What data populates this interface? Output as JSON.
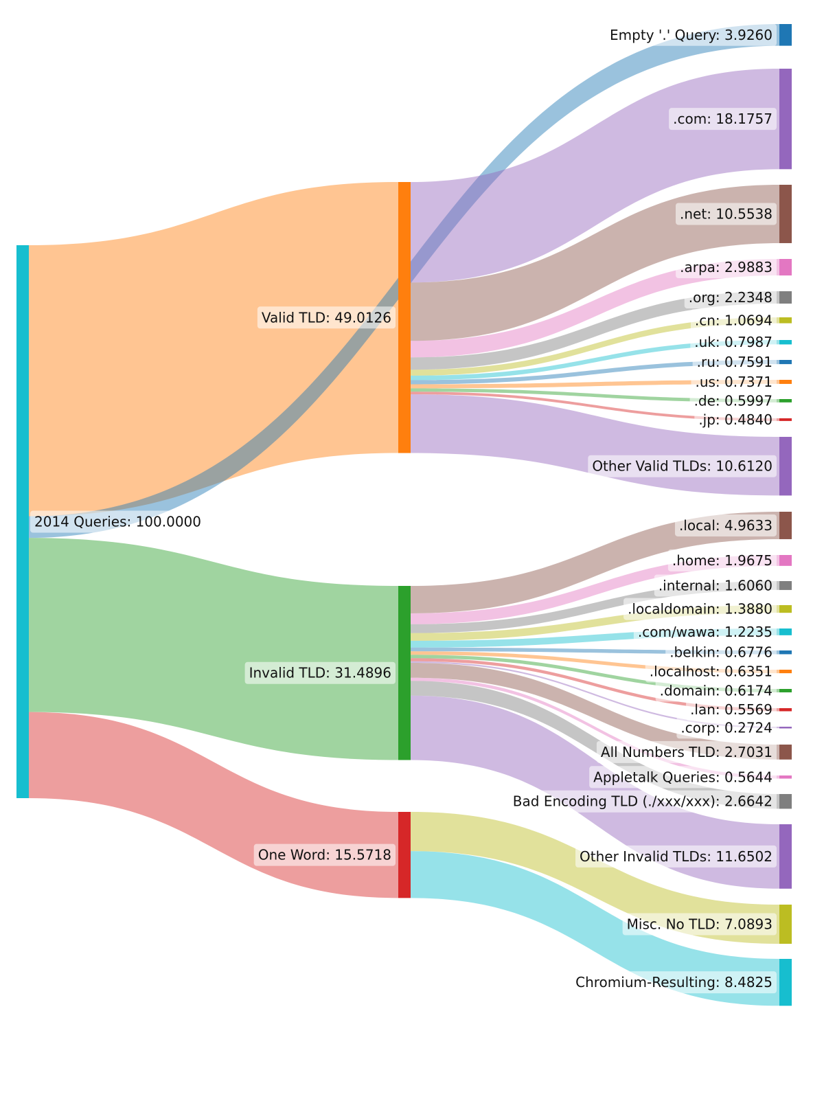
{
  "chart_data": {
    "type": "sankey",
    "title": "",
    "nodes": [
      {
        "id": "root",
        "label": "2014 Queries",
        "value": 100.0,
        "column": 0,
        "color": "#17becf"
      },
      {
        "id": "valid",
        "label": "Valid TLD",
        "value": 49.0126,
        "column": 1,
        "color": "#ff7f0e"
      },
      {
        "id": "invalid",
        "label": "Invalid TLD",
        "value": 31.4896,
        "column": 1,
        "color": "#2ca02c"
      },
      {
        "id": "oneword",
        "label": "One Word",
        "value": 15.5718,
        "column": 1,
        "color": "#d62728"
      },
      {
        "id": "empty",
        "label": "Empty '.' Query",
        "value": 3.926,
        "column": 2,
        "color": "#1f77b4"
      },
      {
        "id": "com",
        "label": ".com",
        "value": 18.1757,
        "column": 2,
        "color": "#9467bd"
      },
      {
        "id": "net",
        "label": ".net",
        "value": 10.5538,
        "column": 2,
        "color": "#8c564b"
      },
      {
        "id": "arpa",
        "label": ".arpa",
        "value": 2.9883,
        "column": 2,
        "color": "#e377c2"
      },
      {
        "id": "org",
        "label": ".org",
        "value": 2.2348,
        "column": 2,
        "color": "#7f7f7f"
      },
      {
        "id": "cn",
        "label": ".cn",
        "value": 1.0694,
        "column": 2,
        "color": "#bcbd22"
      },
      {
        "id": "uk",
        "label": ".uk",
        "value": 0.7987,
        "column": 2,
        "color": "#17becf"
      },
      {
        "id": "ru",
        "label": ".ru",
        "value": 0.7591,
        "column": 2,
        "color": "#1f77b4"
      },
      {
        "id": "us",
        "label": ".us",
        "value": 0.7371,
        "column": 2,
        "color": "#ff7f0e"
      },
      {
        "id": "de",
        "label": ".de",
        "value": 0.5997,
        "column": 2,
        "color": "#2ca02c"
      },
      {
        "id": "jp",
        "label": ".jp",
        "value": 0.484,
        "column": 2,
        "color": "#d62728"
      },
      {
        "id": "othervalid",
        "label": "Other Valid TLDs",
        "value": 10.612,
        "column": 2,
        "color": "#9467bd"
      },
      {
        "id": "local",
        "label": ".local",
        "value": 4.9633,
        "column": 2,
        "color": "#8c564b"
      },
      {
        "id": "home",
        "label": ".home",
        "value": 1.9675,
        "column": 2,
        "color": "#e377c2"
      },
      {
        "id": "internal",
        "label": ".internal",
        "value": 1.606,
        "column": 2,
        "color": "#7f7f7f"
      },
      {
        "id": "localdomain",
        "label": ".localdomain",
        "value": 1.388,
        "column": 2,
        "color": "#bcbd22"
      },
      {
        "id": "comwawa",
        "label": ".com/wawa",
        "value": 1.2235,
        "column": 2,
        "color": "#17becf"
      },
      {
        "id": "belkin",
        "label": ".belkin",
        "value": 0.6776,
        "column": 2,
        "color": "#1f77b4"
      },
      {
        "id": "localhost",
        "label": ".localhost",
        "value": 0.6351,
        "column": 2,
        "color": "#ff7f0e"
      },
      {
        "id": "domain",
        "label": ".domain",
        "value": 0.6174,
        "column": 2,
        "color": "#2ca02c"
      },
      {
        "id": "lan",
        "label": ".lan",
        "value": 0.5569,
        "column": 2,
        "color": "#d62728"
      },
      {
        "id": "corp",
        "label": ".corp",
        "value": 0.2724,
        "column": 2,
        "color": "#9467bd"
      },
      {
        "id": "allnum",
        "label": "All Numbers TLD",
        "value": 2.7031,
        "column": 2,
        "color": "#8c564b"
      },
      {
        "id": "appletalk",
        "label": "Appletalk Queries",
        "value": 0.5644,
        "column": 2,
        "color": "#e377c2"
      },
      {
        "id": "badenc",
        "label": "Bad Encoding TLD (./xxx/xxx)",
        "value": 2.6642,
        "column": 2,
        "color": "#7f7f7f"
      },
      {
        "id": "otherinvalid",
        "label": "Other Invalid TLDs",
        "value": 11.6502,
        "column": 2,
        "color": "#9467bd"
      },
      {
        "id": "misc",
        "label": "Misc. No TLD",
        "value": 7.0893,
        "column": 2,
        "color": "#bcbd22"
      },
      {
        "id": "chromium",
        "label": "Chromium-Resulting",
        "value": 8.4825,
        "column": 2,
        "color": "#17becf"
      }
    ],
    "links": [
      {
        "source": "root",
        "target": "valid",
        "value": 49.0126
      },
      {
        "source": "root",
        "target": "empty",
        "value": 3.926
      },
      {
        "source": "root",
        "target": "invalid",
        "value": 31.4896
      },
      {
        "source": "root",
        "target": "oneword",
        "value": 15.5718
      },
      {
        "source": "valid",
        "target": "com",
        "value": 18.1757
      },
      {
        "source": "valid",
        "target": "net",
        "value": 10.5538
      },
      {
        "source": "valid",
        "target": "arpa",
        "value": 2.9883
      },
      {
        "source": "valid",
        "target": "org",
        "value": 2.2348
      },
      {
        "source": "valid",
        "target": "cn",
        "value": 1.0694
      },
      {
        "source": "valid",
        "target": "uk",
        "value": 0.7987
      },
      {
        "source": "valid",
        "target": "ru",
        "value": 0.7591
      },
      {
        "source": "valid",
        "target": "us",
        "value": 0.7371
      },
      {
        "source": "valid",
        "target": "de",
        "value": 0.5997
      },
      {
        "source": "valid",
        "target": "jp",
        "value": 0.484
      },
      {
        "source": "valid",
        "target": "othervalid",
        "value": 10.612
      },
      {
        "source": "invalid",
        "target": "local",
        "value": 4.9633
      },
      {
        "source": "invalid",
        "target": "home",
        "value": 1.9675
      },
      {
        "source": "invalid",
        "target": "internal",
        "value": 1.606
      },
      {
        "source": "invalid",
        "target": "localdomain",
        "value": 1.388
      },
      {
        "source": "invalid",
        "target": "comwawa",
        "value": 1.2235
      },
      {
        "source": "invalid",
        "target": "belkin",
        "value": 0.6776
      },
      {
        "source": "invalid",
        "target": "localhost",
        "value": 0.6351
      },
      {
        "source": "invalid",
        "target": "domain",
        "value": 0.6174
      },
      {
        "source": "invalid",
        "target": "lan",
        "value": 0.5569
      },
      {
        "source": "invalid",
        "target": "corp",
        "value": 0.2724
      },
      {
        "source": "invalid",
        "target": "allnum",
        "value": 2.7031
      },
      {
        "source": "invalid",
        "target": "appletalk",
        "value": 0.5644
      },
      {
        "source": "invalid",
        "target": "badenc",
        "value": 2.6642
      },
      {
        "source": "invalid",
        "target": "otherinvalid",
        "value": 11.6502
      },
      {
        "source": "oneword",
        "target": "misc",
        "value": 7.0893
      },
      {
        "source": "oneword",
        "target": "chromium",
        "value": 8.4825
      }
    ]
  }
}
